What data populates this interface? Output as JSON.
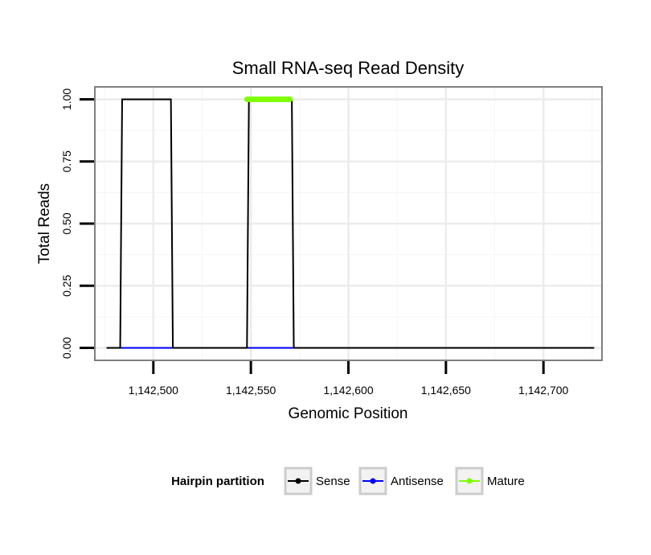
{
  "chart_data": {
    "type": "line",
    "title": "Small RNA-seq Read Density",
    "xlabel": "Genomic Position",
    "ylabel": "Total Reads",
    "xlim": [
      1142470,
      1142730
    ],
    "ylim": [
      -0.05,
      1.05
    ],
    "x_ticks": [
      1142500,
      1142550,
      1142600,
      1142650,
      1142700
    ],
    "x_tick_labels": [
      "1,142,500",
      "1,142,550",
      "1,142,600",
      "1,142,650",
      "1,142,700"
    ],
    "y_ticks": [
      0,
      0.25,
      0.5,
      0.75,
      1.0
    ],
    "y_tick_labels": [
      "0.00",
      "0.25",
      "0.50",
      "0.75",
      "1.00"
    ],
    "grid": true,
    "legend": {
      "title": "Hairpin partition",
      "position": "bottom",
      "entries": [
        "Sense",
        "Antisense",
        "Mature"
      ]
    },
    "series": [
      {
        "name": "Sense",
        "color": "#000000",
        "x": [
          1142476,
          1142483,
          1142484,
          1142509,
          1142510,
          1142548,
          1142549,
          1142571,
          1142572,
          1142726
        ],
        "values": [
          0,
          0,
          1,
          1,
          0,
          0,
          1,
          1,
          0,
          0
        ]
      },
      {
        "name": "Antisense",
        "color": "#0000ff",
        "x": [
          1142483,
          1142510,
          1142548,
          1142572
        ],
        "values": [
          0,
          0,
          0,
          0
        ]
      },
      {
        "name": "Mature",
        "color": "#7fff00",
        "x": [
          1142548,
          1142570
        ],
        "values": [
          1,
          1
        ]
      }
    ]
  }
}
